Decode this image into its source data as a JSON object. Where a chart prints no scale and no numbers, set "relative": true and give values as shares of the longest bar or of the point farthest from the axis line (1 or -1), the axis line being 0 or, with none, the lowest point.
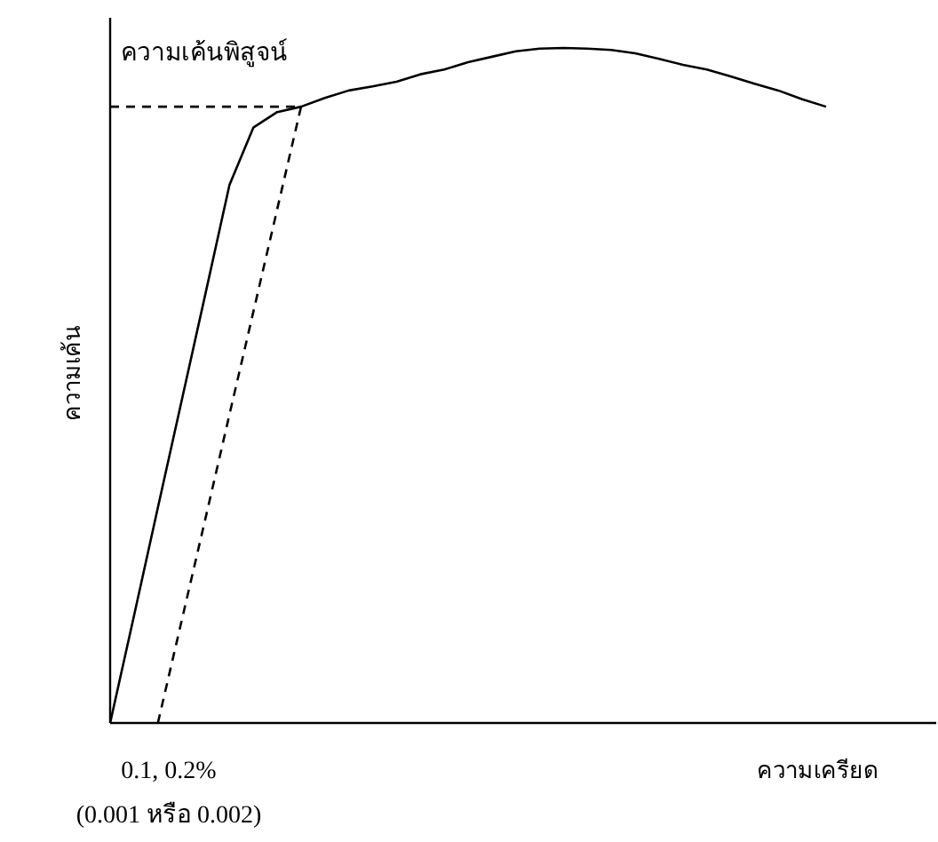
{
  "chart_data": {
    "type": "line",
    "relative": true,
    "xlabel": "ความเครียด",
    "ylabel": "ความเค้น",
    "categories": [
      null,
      null,
      null,
      null,
      null,
      null,
      null,
      null,
      null,
      null,
      null,
      null,
      null,
      null,
      null,
      null,
      null,
      null,
      null,
      null,
      null,
      null,
      null,
      null,
      null,
      null,
      null,
      null,
      null,
      null,
      null
    ],
    "series": [
      {
        "color": "#000000",
        "line_style": "solid",
        "values": [
          0,
          0.159,
          0.319,
          0.478,
          0.637,
          0.797,
          0.882,
          0.905,
          0.913,
          0.926,
          0.937,
          0.943,
          0.95,
          0.961,
          0.968,
          0.979,
          0.987,
          0.995,
          0.999,
          1,
          0.999,
          0.997,
          0.992,
          0.984,
          0.975,
          0.968,
          0.958,
          0.947,
          0.937,
          0.924,
          0.913
        ]
      },
      {
        "color": "#000000",
        "line_style": "dashed",
        "values": [
          null,
          null,
          0,
          0.152,
          0.304,
          0.457,
          0.609,
          0.761,
          0.913,
          null,
          null,
          null,
          null,
          null,
          null,
          null,
          null,
          null,
          null,
          null,
          null,
          null,
          null,
          null,
          null,
          null,
          null,
          null,
          null,
          null,
          null
        ]
      },
      {
        "color": "#000000",
        "line_style": "dashed",
        "values": [
          0.913,
          0.913,
          0.913,
          0.913,
          0.913,
          0.913,
          0.913,
          0.913,
          0.913,
          null,
          null,
          null,
          null,
          null,
          null,
          null,
          null,
          null,
          null,
          null,
          null,
          null,
          null,
          null,
          null,
          null,
          null,
          null,
          null,
          null,
          null
        ]
      }
    ],
    "annotations": [
      "ความเค้นพิสูจน์",
      "0.1, 0.2%",
      "(0.001 หรือ 0.002)"
    ]
  }
}
